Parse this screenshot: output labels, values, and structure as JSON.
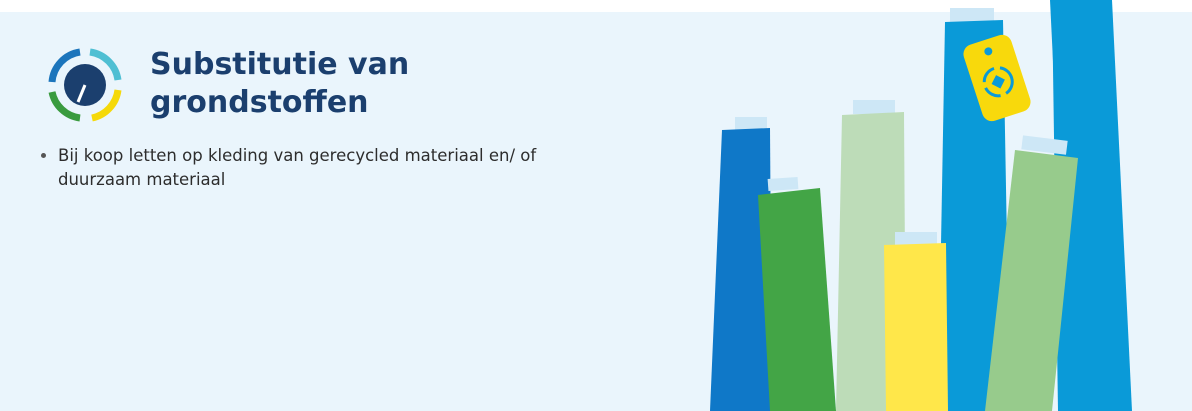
{
  "header": {
    "title_lines": [
      "Substitutie van",
      "grondstoffen"
    ]
  },
  "bullets": [
    "Bij koop letten op kleding van gerecycled materiaal en/ of duurzaam materiaal"
  ]
}
